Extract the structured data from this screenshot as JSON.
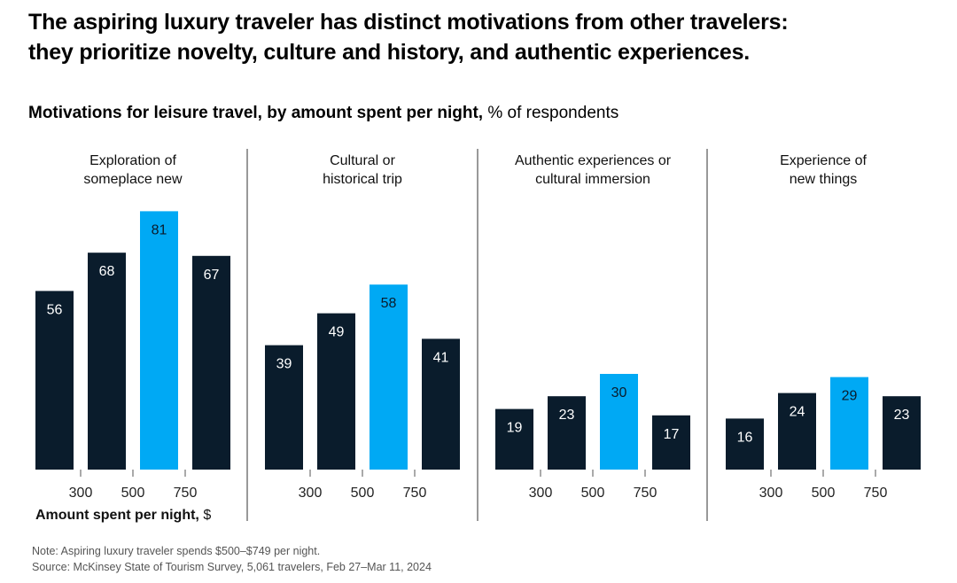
{
  "title_lines": [
    "The aspiring luxury traveler has distinct motivations from other travelers:",
    "they prioritize novelty, culture and history, and authentic experiences."
  ],
  "subtitle": {
    "bold": "Motivations for leisure travel, by amount spent per night,",
    "normal": " % of respondents"
  },
  "colors": {
    "dark": "#0a1c2c",
    "highlight": "#00a9f4",
    "label_on_dark": "#ffffff",
    "label_on_highlight": "#0a1c2c",
    "divider": "#333333"
  },
  "chart_data": {
    "type": "bar",
    "categories": [
      "<300",
      "300-500",
      "500-750",
      "750+"
    ],
    "tick_labels": [
      "300",
      "500",
      "750"
    ],
    "highlight_category_index": 2,
    "ylim": [
      0,
      90
    ],
    "xlabel": {
      "bold": "Amount spent per night,",
      "normal": " $"
    },
    "panels": [
      {
        "title_lines": [
          "Exploration of",
          "someplace new"
        ],
        "values": [
          56,
          68,
          81,
          67
        ]
      },
      {
        "title_lines": [
          "Cultural or",
          "historical trip"
        ],
        "values": [
          39,
          49,
          58,
          41
        ]
      },
      {
        "title_lines": [
          "Authentic experiences or",
          "cultural immersion"
        ],
        "values": [
          19,
          23,
          30,
          17
        ]
      },
      {
        "title_lines": [
          "Experience of",
          "new things"
        ],
        "values": [
          16,
          24,
          29,
          23
        ]
      }
    ]
  },
  "footnotes": {
    "note": "Note: Aspiring luxury traveler spends $500–$749 per night.",
    "source": "Source: McKinsey State of Tourism Survey, 5,061 travelers, Feb 27–Mar 11, 2024"
  }
}
